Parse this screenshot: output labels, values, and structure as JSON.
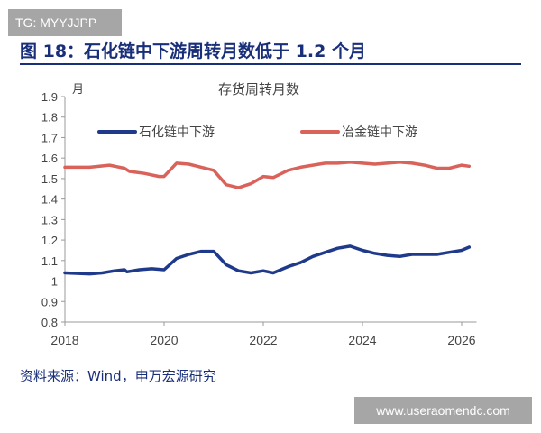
{
  "watermark_top": "TG: MYYJJPP",
  "figure_title": "图 18：石化链中下游周转月数低于 1.2 个月",
  "source": "资料来源：Wind，申万宏源研究",
  "watermark_bottom": "www.useraomendc.com",
  "chart_data": {
    "type": "line",
    "title": "存货周转月数",
    "ylabel": "月",
    "xlabel": "",
    "xlim": [
      2018,
      2026.3
    ],
    "ylim": [
      0.8,
      1.9
    ],
    "xticks": [
      "2018",
      "2020",
      "2022",
      "2024",
      "2026"
    ],
    "yticks": [
      "1.9",
      "1.8",
      "1.7",
      "1.6",
      "1.5",
      "1.4",
      "1.3",
      "1.2",
      "1.1",
      "1",
      "0.9",
      "0.8"
    ],
    "grid": false,
    "legend_position": "top",
    "series": [
      {
        "name": "石化链中下游",
        "color": "#1f3a8a",
        "x": [
          2018.0,
          2018.5,
          2018.75,
          2019.0,
          2019.2,
          2019.25,
          2019.5,
          2019.75,
          2020.0,
          2020.25,
          2020.5,
          2020.75,
          2021.0,
          2021.25,
          2021.5,
          2021.75,
          2022.0,
          2022.2,
          2022.5,
          2022.75,
          2023.0,
          2023.25,
          2023.5,
          2023.75,
          2024.0,
          2024.25,
          2024.5,
          2024.75,
          2025.0,
          2025.25,
          2025.5,
          2025.75,
          2026.0,
          2026.15
        ],
        "y": [
          1.04,
          1.035,
          1.04,
          1.05,
          1.055,
          1.045,
          1.055,
          1.06,
          1.055,
          1.11,
          1.13,
          1.145,
          1.145,
          1.08,
          1.05,
          1.04,
          1.05,
          1.04,
          1.07,
          1.09,
          1.12,
          1.14,
          1.16,
          1.17,
          1.15,
          1.135,
          1.125,
          1.12,
          1.13,
          1.13,
          1.13,
          1.14,
          1.15,
          1.165
        ]
      },
      {
        "name": "冶金链中下游",
        "color": "#d9625a",
        "x": [
          2018.0,
          2018.5,
          2018.9,
          2019.2,
          2019.3,
          2019.6,
          2019.9,
          2020.0,
          2020.25,
          2020.5,
          2020.75,
          2021.0,
          2021.25,
          2021.5,
          2021.75,
          2022.0,
          2022.2,
          2022.5,
          2022.75,
          2023.0,
          2023.25,
          2023.5,
          2023.75,
          2024.0,
          2024.25,
          2024.5,
          2024.75,
          2025.0,
          2025.25,
          2025.5,
          2025.75,
          2026.0,
          2026.15
        ],
        "y": [
          1.555,
          1.555,
          1.565,
          1.55,
          1.535,
          1.525,
          1.51,
          1.51,
          1.575,
          1.57,
          1.555,
          1.54,
          1.47,
          1.455,
          1.475,
          1.51,
          1.505,
          1.54,
          1.555,
          1.565,
          1.575,
          1.575,
          1.58,
          1.575,
          1.57,
          1.575,
          1.58,
          1.575,
          1.565,
          1.55,
          1.55,
          1.565,
          1.56
        ]
      }
    ]
  }
}
